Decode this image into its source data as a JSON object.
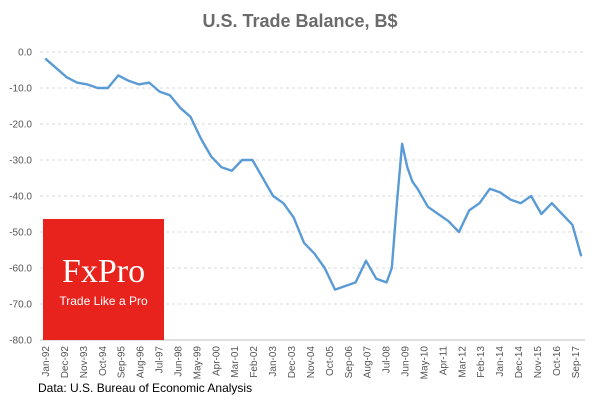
{
  "chart_data": {
    "type": "line",
    "title": "U.S. Trade Balance, B$",
    "xlabel": "",
    "ylabel": "",
    "ylim": [
      -80,
      0
    ],
    "yticks": [
      "0.0",
      "-10.0",
      "-20.0",
      "-30.0",
      "-40.0",
      "-50.0",
      "-60.0",
      "-70.0",
      "-80.0"
    ],
    "grid": true,
    "legend": "none",
    "x_tick_labels": [
      "Jan-92",
      "Dec-92",
      "Nov-93",
      "Oct-94",
      "Sep-95",
      "Aug-96",
      "Jul-97",
      "Jun-98",
      "May-99",
      "Apr-00",
      "Mar-01",
      "Feb-02",
      "Jan-03",
      "Dec-03",
      "Nov-04",
      "Oct-05",
      "Sep-06",
      "Aug-07",
      "Jul-08",
      "Jun-09",
      "May-10",
      "Apr-11",
      "Mar-12",
      "Feb-13",
      "Jan-14",
      "Dec-14",
      "Nov-15",
      "Oct-16",
      "Sep-17"
    ],
    "series": [
      {
        "color": "#5b9bd5",
        "x": [
          "Jan-92",
          "Jul-92",
          "Jan-93",
          "Jul-93",
          "Jan-94",
          "Jul-94",
          "Jan-95",
          "Jul-95",
          "Jan-96",
          "Jul-96",
          "Jan-97",
          "Jul-97",
          "Jan-98",
          "Jul-98",
          "Jan-99",
          "Jul-99",
          "Jan-00",
          "Jul-00",
          "Jan-01",
          "Jul-01",
          "Jan-02",
          "Jul-02",
          "Jan-03",
          "Jul-03",
          "Jan-04",
          "Jul-04",
          "Jan-05",
          "Jul-05",
          "Jan-06",
          "Jul-06",
          "Jan-07",
          "Jul-07",
          "Jan-08",
          "Jul-08",
          "Oct-08",
          "Jan-09",
          "Apr-09",
          "Jul-09",
          "Oct-09",
          "Jan-10",
          "Jul-10",
          "Jan-11",
          "Jul-11",
          "Jan-12",
          "Jul-12",
          "Jan-13",
          "Jul-13",
          "Jan-14",
          "Jul-14",
          "Jan-15",
          "Jul-15",
          "Jan-16",
          "Jul-16",
          "Jan-17",
          "Jul-17",
          "Dec-17"
        ],
        "values": [
          -2.0,
          -4.5,
          -7.0,
          -8.5,
          -9.0,
          -10.0,
          -10.0,
          -6.5,
          -8.0,
          -9.0,
          -8.5,
          -11.0,
          -12.0,
          -15.5,
          -18.0,
          -24.0,
          -29.0,
          -32.0,
          -33.0,
          -30.0,
          -30.0,
          -35.0,
          -40.0,
          -42.0,
          -46.0,
          -53.0,
          -56.0,
          -60.0,
          -66.0,
          -65.0,
          -64.0,
          -58.0,
          -63.0,
          -64.0,
          -60.0,
          -42.0,
          -25.5,
          -32.0,
          -36.0,
          -38.0,
          -43.0,
          -45.0,
          -47.0,
          -50.0,
          -44.0,
          -42.0,
          -38.0,
          -39.0,
          -41.0,
          -42.0,
          -40.0,
          -45.0,
          -42.0,
          -45.0,
          -48.0,
          -56.5
        ]
      }
    ]
  },
  "source": "Data: U.S. Bureau of Economic Analysis",
  "logo": {
    "brand": "FxPro",
    "tagline": "Trade Like a Pro"
  }
}
